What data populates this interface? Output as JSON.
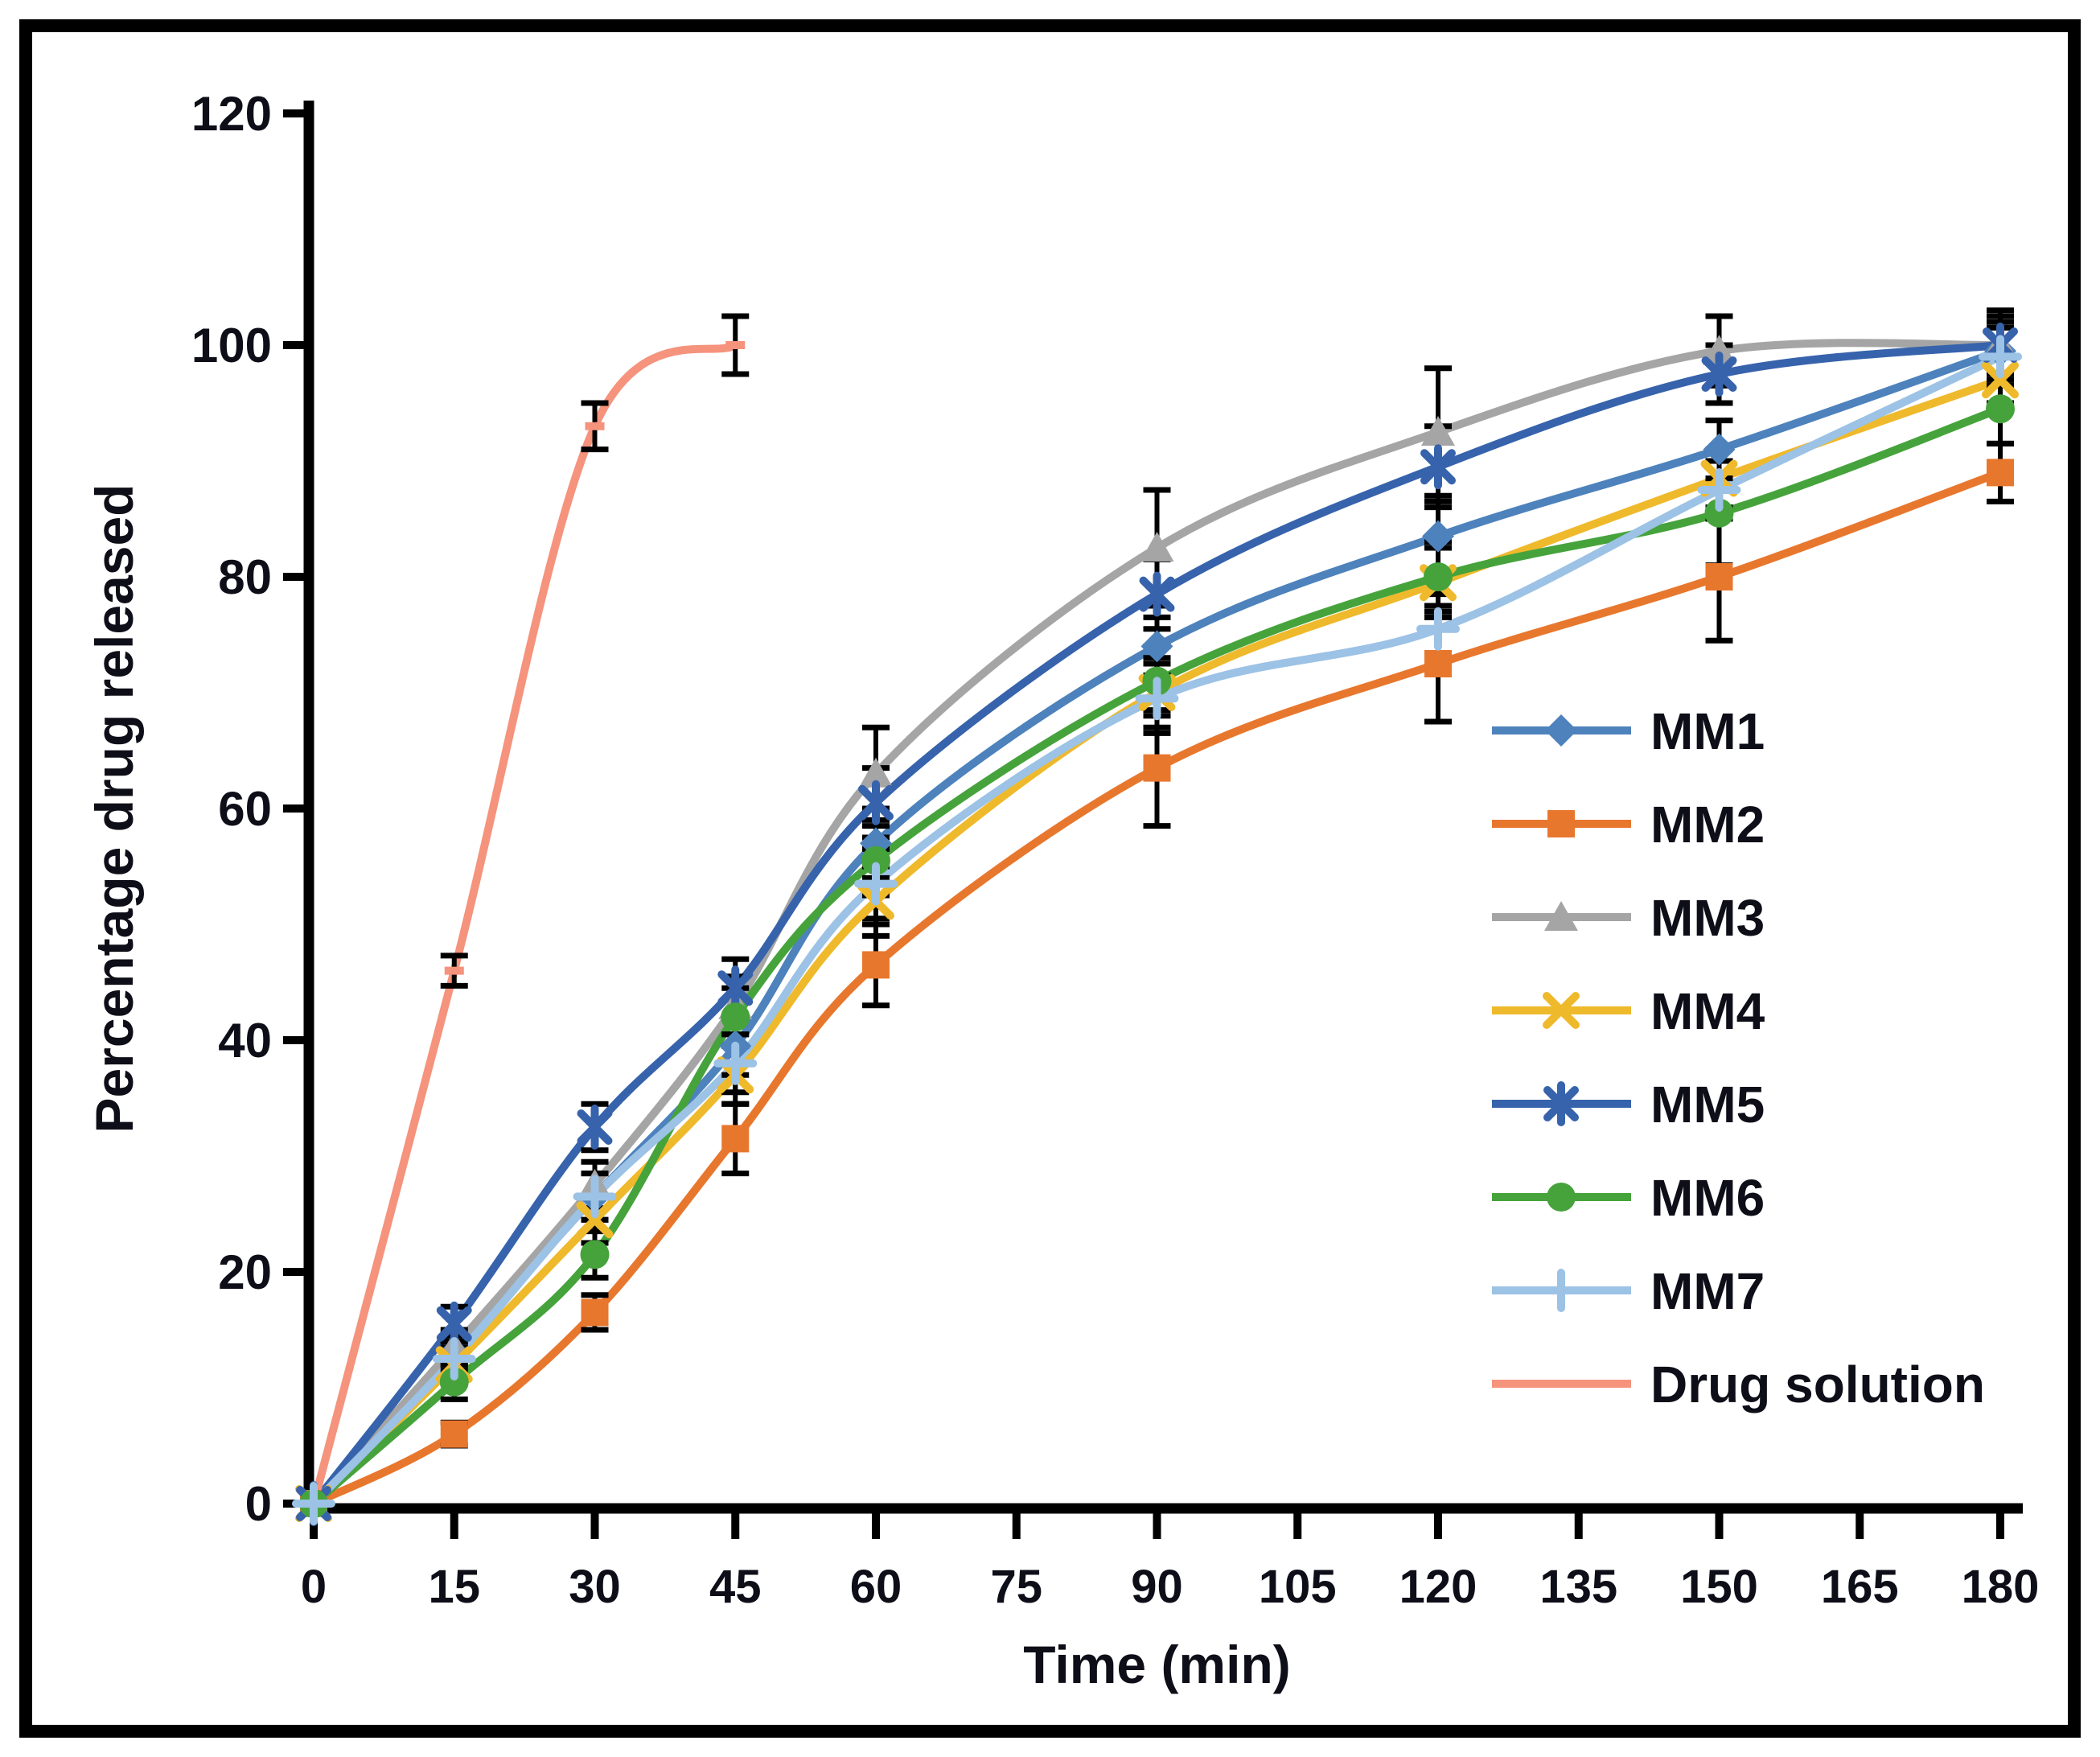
{
  "figure": {
    "background": "#ffffff",
    "border_color": "#000000",
    "text_color": "#0e0e18"
  },
  "chart_data": {
    "type": "line",
    "title": "",
    "xlabel": "Time (min)",
    "ylabel": "Percentage drug released",
    "xlim": [
      0,
      180
    ],
    "ylim": [
      0,
      120
    ],
    "x_ticks": [
      0,
      15,
      30,
      45,
      60,
      75,
      90,
      105,
      120,
      135,
      150,
      165,
      180
    ],
    "y_ticks": [
      0,
      20,
      40,
      60,
      80,
      100,
      120
    ],
    "grid": false,
    "legend_position": "right-middle",
    "x": [
      0,
      15,
      30,
      45,
      60,
      90,
      120,
      150,
      180
    ],
    "series": [
      {
        "name": "MM1",
        "color": "#4D82BC",
        "marker": "diamond",
        "values": [
          0,
          13,
          26.5,
          39.5,
          57,
          74,
          83.5,
          91,
          99.5
        ],
        "errors": [
          0,
          1.5,
          2,
          2.5,
          3,
          2.5,
          3,
          2.5,
          2.5
        ]
      },
      {
        "name": "MM2",
        "color": "#E8772E",
        "marker": "square",
        "values": [
          0,
          6,
          16.5,
          31.5,
          46.5,
          63.5,
          72.5,
          80,
          89
        ],
        "errors": [
          0,
          1,
          1.5,
          3,
          3.5,
          5,
          5,
          5.5,
          2.5
        ]
      },
      {
        "name": "MM3",
        "color": "#A5A5A5",
        "marker": "triangle",
        "values": [
          0,
          13.5,
          27.5,
          43,
          63,
          82.5,
          92.5,
          99.5,
          100
        ],
        "errors": [
          0,
          1.5,
          2,
          2.5,
          4,
          5,
          5.5,
          3,
          2.5
        ]
      },
      {
        "name": "MM4",
        "color": "#EFB92C",
        "marker": "x",
        "values": [
          0,
          12,
          24.5,
          37,
          52,
          70,
          79.5,
          88.5,
          97
        ],
        "errors": [
          0,
          1.5,
          2,
          2.5,
          3,
          3,
          3,
          2.5,
          2
        ]
      },
      {
        "name": "MM5",
        "color": "#3763AC",
        "marker": "asterisk",
        "values": [
          0,
          15.5,
          32.5,
          44.5,
          60.5,
          78.5,
          89.5,
          97.5,
          100
        ],
        "errors": [
          0,
          1.5,
          2,
          2.5,
          3,
          3,
          3.5,
          2.5,
          3
        ]
      },
      {
        "name": "MM6",
        "color": "#46A33C",
        "marker": "circle",
        "values": [
          0,
          10.5,
          21.5,
          42,
          55.5,
          71,
          80,
          85.5,
          94.5
        ],
        "errors": [
          0,
          1.5,
          2,
          2.5,
          3,
          3,
          3,
          4.5,
          3
        ]
      },
      {
        "name": "MM7",
        "color": "#9CC2E5",
        "marker": "plus",
        "values": [
          0,
          12.5,
          26.5,
          38,
          53.5,
          69.5,
          75.5,
          87.5,
          99
        ],
        "errors": [
          0,
          1.5,
          2,
          2.5,
          3,
          3,
          3,
          2.5,
          2.5
        ]
      },
      {
        "name": "Drug solution",
        "color": "#F5937D",
        "marker": "none",
        "x": [
          0,
          15,
          30,
          45
        ],
        "values": [
          0,
          46,
          93,
          100
        ],
        "errors": [
          0,
          1.3,
          2,
          2.5
        ]
      }
    ]
  }
}
